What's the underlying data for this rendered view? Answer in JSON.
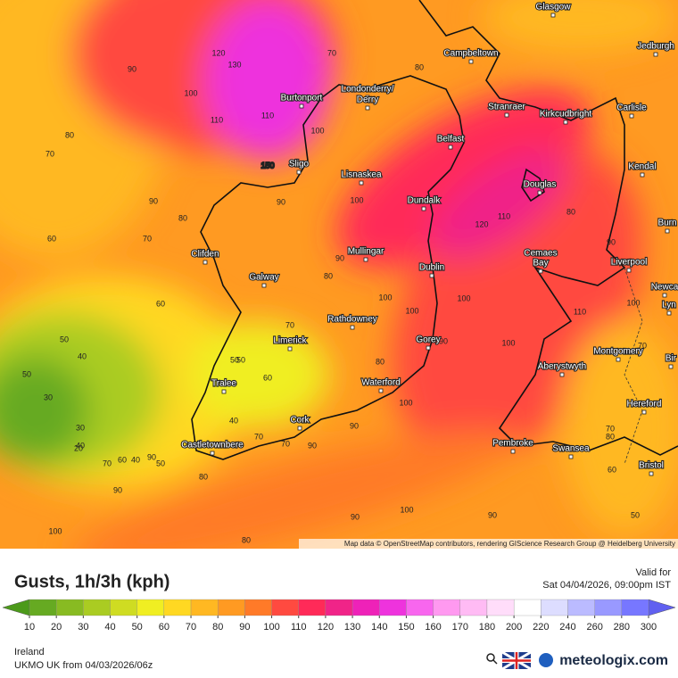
{
  "map": {
    "cities": [
      "Glasgow",
      "Campbeltown",
      "Jedburgh",
      "Burtonport",
      "Londonderry/",
      "Derry",
      "Stranraer",
      "Kirkcudbright",
      "Carlisle",
      "Belfast",
      "Sligo",
      "Lisnaskea",
      "Kendal",
      "Douglas",
      "Dundalk",
      "Burn",
      "Mullingar",
      "Clifden",
      "Cemaes",
      "Bay",
      "Liverpool",
      "Dublin",
      "Galway",
      "Newca",
      "Lyn",
      "Rathdowney",
      "Limerick",
      "Gorey",
      "Montgomery",
      "Bir",
      "Aberystwyth",
      "Tralee",
      "Waterford",
      "Hereford",
      "Cork",
      "Castletownbere",
      "Pembroke",
      "Swansea",
      "Bristol"
    ],
    "contour_labels": [
      150,
      120,
      130,
      90,
      100,
      110,
      80,
      70,
      90,
      70,
      60,
      50,
      40,
      30,
      50,
      40,
      20,
      30,
      50,
      70,
      60,
      40,
      60,
      80,
      90,
      100,
      110,
      100,
      70,
      80,
      70,
      100,
      90,
      90,
      80,
      100,
      90,
      110,
      120,
      100,
      100,
      110,
      90,
      80,
      70,
      50,
      90,
      100,
      100,
      90,
      80,
      70,
      60,
      70,
      50,
      100,
      90,
      60,
      70,
      80,
      100,
      90,
      80,
      90,
      40,
      50,
      80
    ],
    "attribution": "Map data © OpenStreetMap contributors, rendering GIScience Research Group @ Heidelberg University"
  },
  "header": {
    "title": "Gusts, 1h/3h (kph)",
    "valid_label": "Valid for",
    "valid_time": "Sat 04/04/2026, 09:00pm IST"
  },
  "legend": {
    "ticks": [
      10,
      20,
      30,
      40,
      50,
      60,
      70,
      80,
      90,
      100,
      110,
      120,
      130,
      140,
      150,
      160,
      170,
      180,
      200,
      220,
      240,
      260,
      280,
      300
    ],
    "under_color": "#4c9a1a",
    "colors": [
      "#66aa22",
      "#88bb22",
      "#aacc22",
      "#cfdc22",
      "#f0ee22",
      "#ffd822",
      "#ffb822",
      "#ff9a22",
      "#ff7a28",
      "#ff4a40",
      "#ff2a58",
      "#f02488",
      "#ee22b8",
      "#ee33dd",
      "#f866ee",
      "#ff99f0",
      "#ffbbf4",
      "#ffddfa",
      "#ffffff",
      "#ddddff",
      "#bbbbff",
      "#9999ff",
      "#7777ff"
    ],
    "over_color": "#6060f0"
  },
  "footer": {
    "region": "Ireland",
    "model": "UKMO UK from  04/03/2026/06z",
    "brand": "meteologix.com"
  }
}
